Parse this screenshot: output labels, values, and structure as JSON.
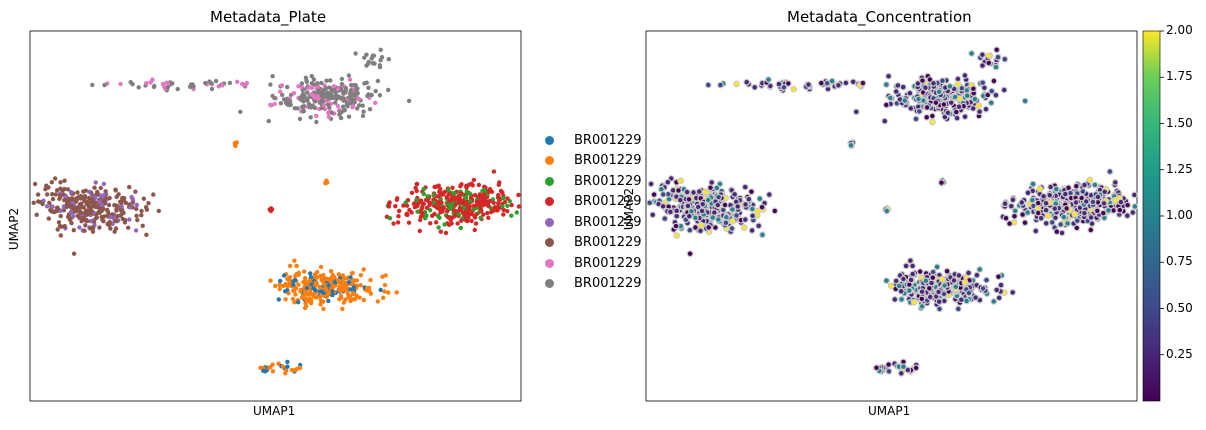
{
  "chart_data": [
    {
      "type": "scatter",
      "title": "Metadata_Plate",
      "xlabel": "UMAP1",
      "ylabel": "UMAP2",
      "legend_position": "right",
      "series": [
        {
          "name": "BR001229",
          "color": "#1f77b4"
        },
        {
          "name": "BR001229",
          "color": "#ff7f0e"
        },
        {
          "name": "BR001229",
          "color": "#2ca02c"
        },
        {
          "name": "BR001229",
          "color": "#d62728"
        },
        {
          "name": "BR001229",
          "color": "#9467bd"
        },
        {
          "name": "BR001229",
          "color": "#8c564b"
        },
        {
          "name": "BR001229",
          "color": "#e377c2"
        },
        {
          "name": "BR001229",
          "color": "#7f7f7f"
        }
      ],
      "clusters": [
        {
          "id": "top-left-chain",
          "x": -4.0,
          "y": 6.3,
          "n": 50,
          "mix": [
            [
              7,
              0.55
            ],
            [
              6,
              0.45
            ]
          ],
          "sx": 1.4,
          "sy": 0.1
        },
        {
          "id": "top-main",
          "x": 0.6,
          "y": 5.7,
          "n": 260,
          "mix": [
            [
              7,
              0.75
            ],
            [
              6,
              0.25
            ]
          ],
          "sx": 0.8,
          "sy": 0.45
        },
        {
          "id": "top-right-small",
          "x": 2.1,
          "y": 7.6,
          "n": 18,
          "mix": [
            [
              7,
              1.0
            ]
          ],
          "sx": 0.2,
          "sy": 0.2
        },
        {
          "id": "left-main",
          "x": -6.9,
          "y": 0.4,
          "n": 330,
          "mix": [
            [
              5,
              0.8
            ],
            [
              4,
              0.2
            ]
          ],
          "sx": 0.8,
          "sy": 0.55
        },
        {
          "id": "right-main",
          "x": 4.7,
          "y": 0.6,
          "n": 380,
          "mix": [
            [
              3,
              0.8
            ],
            [
              2,
              0.2
            ]
          ],
          "sx": 0.9,
          "sy": 0.45
        },
        {
          "id": "center-bottom",
          "x": 0.6,
          "y": -3.4,
          "n": 300,
          "mix": [
            [
              1,
              0.75
            ],
            [
              0,
              0.25
            ]
          ],
          "sx": 0.75,
          "sy": 0.4
        },
        {
          "id": "bottom-small",
          "x": -0.8,
          "y": -7.3,
          "n": 24,
          "mix": [
            [
              1,
              0.7
            ],
            [
              0,
              0.3
            ]
          ],
          "sx": 0.4,
          "sy": 0.12
        },
        {
          "id": "mid-small",
          "x": -1.2,
          "y": 0.3,
          "n": 4,
          "mix": [
            [
              3,
              1.0
            ]
          ],
          "sx": 0.05,
          "sy": 0.05
        },
        {
          "id": "mid-small-2",
          "x": 0.6,
          "y": 1.6,
          "n": 4,
          "mix": [
            [
              1,
              1.0
            ]
          ],
          "sx": 0.05,
          "sy": 0.05
        },
        {
          "id": "tiny-orange",
          "x": -2.3,
          "y": 3.4,
          "n": 4,
          "mix": [
            [
              1,
              1.0
            ]
          ],
          "sx": 0.05,
          "sy": 0.05
        }
      ]
    },
    {
      "type": "scatter",
      "title": "Metadata_Concentration",
      "xlabel": "UMAP1",
      "ylabel": "UMAP2",
      "colorbar": {
        "range": [
          0.0,
          2.0
        ],
        "ticks": [
          "0.25",
          "0.50",
          "0.75",
          "1.00",
          "1.25",
          "1.50",
          "1.75",
          "2.00"
        ],
        "colormap": "viridis"
      },
      "background_color": "#cccccc"
    }
  ]
}
